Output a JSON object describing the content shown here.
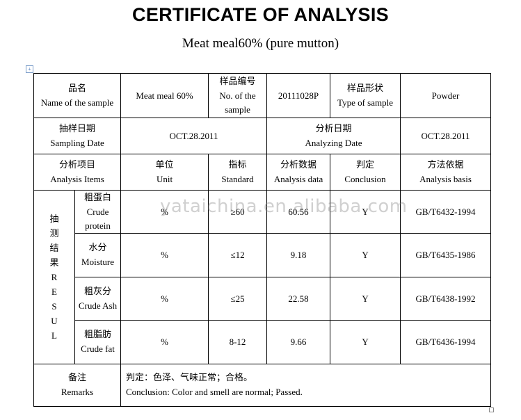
{
  "title": "CERTIFICATE OF ANALYSIS",
  "subtitle": "Meat meal60% (pure mutton)",
  "watermark": "yataichina.en.alibaba.com",
  "header": {
    "name_zh": "品名",
    "name_en": "Name of the sample",
    "name_value": "Meat meal 60%",
    "no_zh": "样品编号",
    "no_en": "No. of the sample",
    "no_value": "20111028P",
    "type_zh": "样品形状",
    "type_en": "Type of sample",
    "type_value": "Powder",
    "sampling_zh": "抽样日期",
    "sampling_en": "Sampling Date",
    "sampling_value": "OCT.28.2011",
    "analyzing_zh": "分析日期",
    "analyzing_en": "Analyzing Date",
    "analyzing_value": "OCT.28.2011"
  },
  "columns": [
    {
      "zh": "分析项目",
      "en": "Analysis Items"
    },
    {
      "zh": "单位",
      "en": "Unit"
    },
    {
      "zh": "指标",
      "en": "Standard"
    },
    {
      "zh": "分析数据",
      "en": "Analysis data"
    },
    {
      "zh": "判定",
      "en": "Conclusion"
    },
    {
      "zh": "方法依据",
      "en": "Analysis basis"
    }
  ],
  "result_label": "抽 测 结 果 R E S U L",
  "rows": [
    {
      "zh": "粗蛋白",
      "en": "Crude protein",
      "unit": "%",
      "standard": "≥60",
      "data": "60.56",
      "conclusion": "Y",
      "basis": "GB/T6432-1994"
    },
    {
      "zh": "水分",
      "en": "Moisture",
      "unit": "%",
      "standard": "≤12",
      "data": "9.18",
      "conclusion": "Y",
      "basis": "GB/T6435-1986"
    },
    {
      "zh": "粗灰分",
      "en": "Crude Ash",
      "unit": "%",
      "standard": "≤25",
      "data": "22.58",
      "conclusion": "Y",
      "basis": "GB/T6438-1992"
    },
    {
      "zh": "粗脂肪",
      "en": "Crude fat",
      "unit": "%",
      "standard": "8-12",
      "data": "9.66",
      "conclusion": "Y",
      "basis": "GB/T6436-1994"
    }
  ],
  "remarks": {
    "zh": "备注",
    "en": "Remarks",
    "text_zh": "判定：色泽、气味正常；合格。",
    "text_en": "Conclusion: Color and smell are normal; Passed."
  }
}
